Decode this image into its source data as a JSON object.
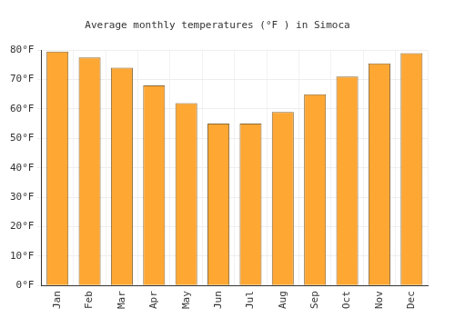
{
  "chart_data": {
    "type": "bar",
    "title": "Average monthly temperatures (°F ) in Simoca",
    "categories": [
      "Jan",
      "Feb",
      "Mar",
      "Apr",
      "May",
      "Jun",
      "Jul",
      "Aug",
      "Sep",
      "Oct",
      "Nov",
      "Dec"
    ],
    "values": [
      79.5,
      77.5,
      74,
      68,
      62,
      55,
      55,
      59,
      65,
      71,
      75.5,
      79
    ],
    "color": "#ffa733",
    "ylim": [
      0,
      80
    ],
    "yticks": [
      {
        "value": 0,
        "label": "0°F"
      },
      {
        "value": 10,
        "label": "10°F"
      },
      {
        "value": 20,
        "label": "20°F"
      },
      {
        "value": 30,
        "label": "30°F"
      },
      {
        "value": 40,
        "label": "40°F"
      },
      {
        "value": 50,
        "label": "50°F"
      },
      {
        "value": 60,
        "label": "60°F"
      },
      {
        "value": 70,
        "label": "70°F"
      },
      {
        "value": 80,
        "label": "80°F"
      }
    ],
    "grid": true
  }
}
